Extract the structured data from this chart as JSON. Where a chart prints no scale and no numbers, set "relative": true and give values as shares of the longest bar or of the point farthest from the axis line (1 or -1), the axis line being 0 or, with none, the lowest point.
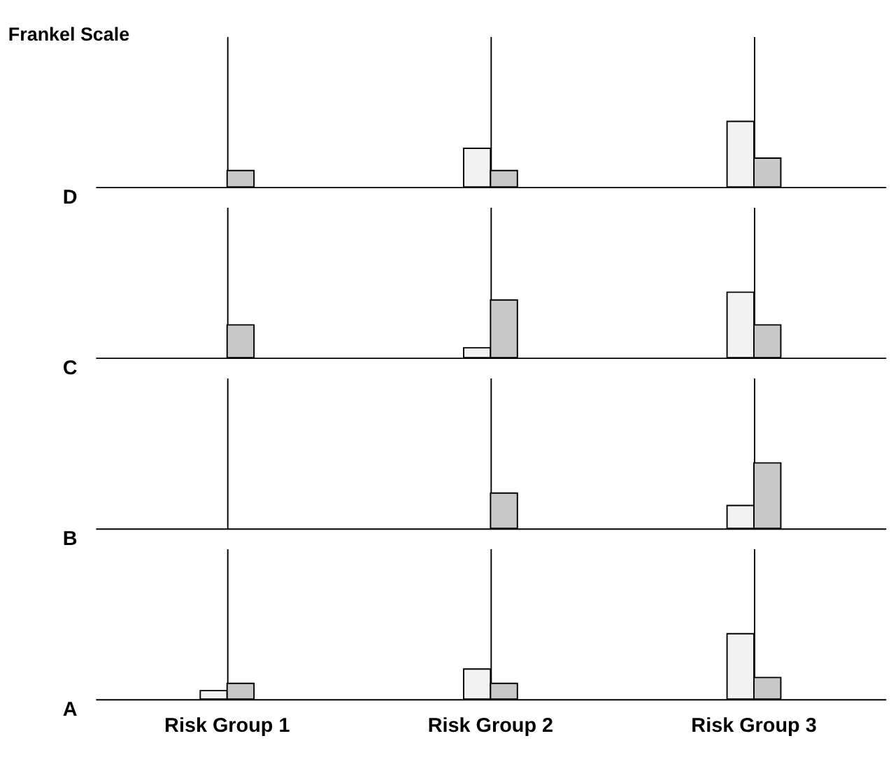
{
  "chart_data": [
    {
      "type": "bar",
      "title": "Frankel Scale",
      "ylabel": "D",
      "categories": [
        null,
        null,
        null
      ],
      "relative": true,
      "grid": "x",
      "tick_labels": false,
      "series": [
        {
          "color": "#f2f2f2",
          "values": [
            null,
            0.59,
            1
          ]
        },
        {
          "color": "#c8c8c8",
          "values": [
            0.25,
            0.25,
            0.44
          ]
        }
      ]
    },
    {
      "type": "bar",
      "ylabel": "C",
      "categories": [
        null,
        null,
        null
      ],
      "relative": true,
      "grid": "x",
      "tick_labels": false,
      "series": [
        {
          "color": "#f2f2f2",
          "values": [
            null,
            0.15,
            1
          ]
        },
        {
          "color": "#c8c8c8",
          "values": [
            0.5,
            0.88,
            0.5
          ]
        }
      ]
    },
    {
      "type": "bar",
      "ylabel": "B",
      "categories": [
        null,
        null,
        null
      ],
      "relative": true,
      "grid": "x",
      "tick_labels": false,
      "series": [
        {
          "color": "#f2f2f2",
          "values": [
            null,
            null,
            0.35
          ]
        },
        {
          "color": "#c8c8c8",
          "values": [
            null,
            0.54,
            1
          ]
        }
      ]
    },
    {
      "type": "bar",
      "ylabel": "A",
      "categories": [
        "Risk Group 1",
        "Risk Group 2",
        "Risk Group 3"
      ],
      "relative": true,
      "grid": "x",
      "tick_labels": "x",
      "series": [
        {
          "color": "#f2f2f2",
          "values": [
            0.13,
            0.46,
            1
          ]
        },
        {
          "color": "#c8c8c8",
          "values": [
            0.24,
            0.24,
            0.33
          ]
        }
      ]
    }
  ]
}
